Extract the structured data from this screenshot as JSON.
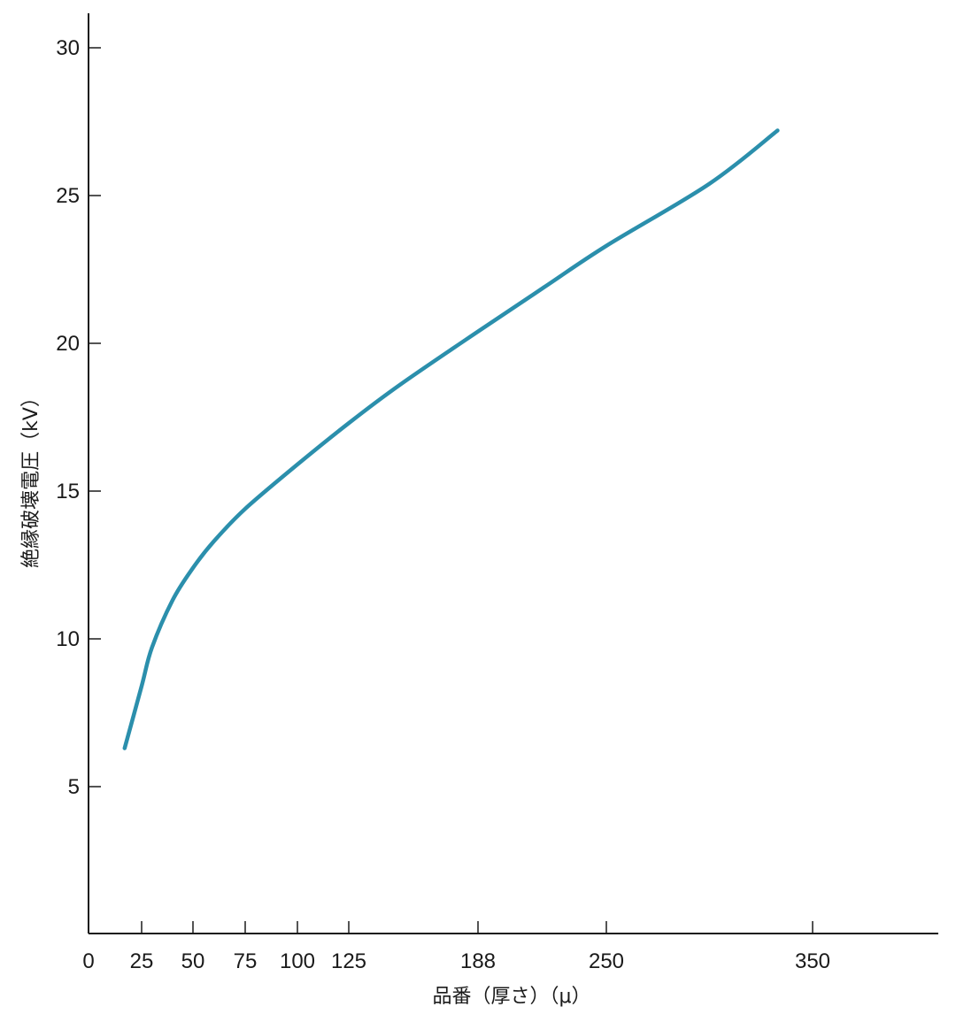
{
  "chart_data": {
    "type": "line",
    "title": "",
    "xlabel": "品番（厚さ）（μ）",
    "ylabel": "絶縁破壊電圧（kV）",
    "xlim": [
      0,
      400
    ],
    "ylim": [
      0,
      31
    ],
    "x_ticks": [
      0,
      25,
      50,
      75,
      100,
      125,
      188,
      250,
      350
    ],
    "y_ticks": [
      5,
      10,
      15,
      20,
      25,
      30
    ],
    "grid": false,
    "series": [
      {
        "color": "#2b8fac",
        "x": [
          17,
          25,
          30,
          40,
          50,
          60,
          75,
          100,
          125,
          150,
          188,
          220,
          250,
          300,
          333
        ],
        "y": [
          6.3,
          8.4,
          9.7,
          11.3,
          12.4,
          13.3,
          14.4,
          15.9,
          17.3,
          18.6,
          20.4,
          21.9,
          23.3,
          25.4,
          27.2
        ]
      }
    ]
  }
}
